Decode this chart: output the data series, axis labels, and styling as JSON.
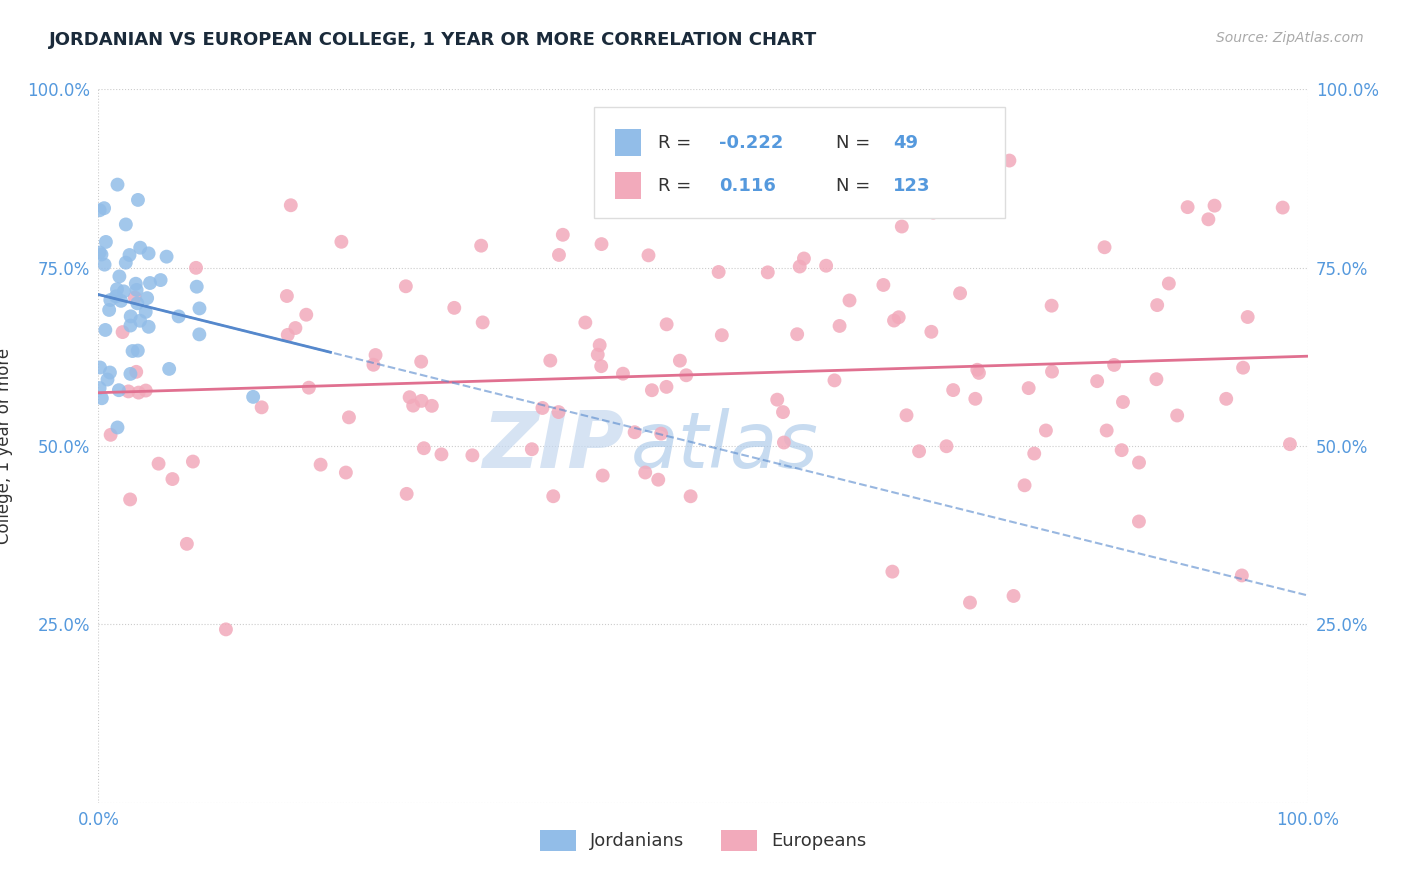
{
  "title": "JORDANIAN VS EUROPEAN COLLEGE, 1 YEAR OR MORE CORRELATION CHART",
  "source_text": "Source: ZipAtlas.com",
  "ylabel": "College, 1 year or more",
  "r_jordanian": -0.222,
  "n_jordanian": 49,
  "r_european": 0.116,
  "n_european": 123,
  "jordanian_color": "#92bde8",
  "european_color": "#f2aabb",
  "european_line_color": "#e07090",
  "jordanian_line_color": "#5588cc",
  "trend_dash_color": "#88aadd",
  "background_color": "#ffffff",
  "grid_color": "#cccccc",
  "title_color": "#1a2a3a",
  "watermark_zip_color": "#c8ddf0",
  "watermark_atlas_color": "#b8cce8",
  "axis_label_color": "#5599dd",
  "text_color": "#333333",
  "legend_border_color": "#dddddd",
  "source_color": "#aaaaaa"
}
